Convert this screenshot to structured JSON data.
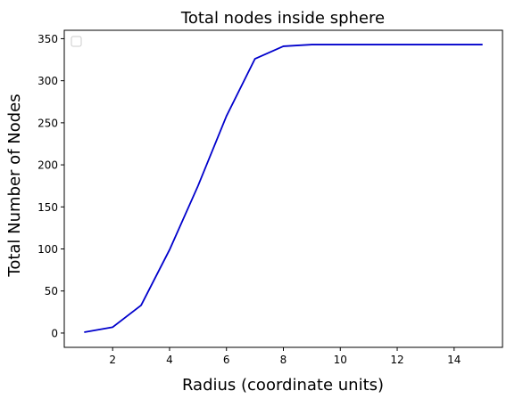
{
  "chart_data": {
    "type": "line",
    "title": "Total nodes inside sphere",
    "xlabel": "Radius (coordinate units)",
    "ylabel": "Total Number of Nodes",
    "xlim": [
      0.3,
      15.7
    ],
    "ylim": [
      -17,
      360
    ],
    "xticks": [
      2,
      4,
      6,
      8,
      10,
      12,
      14
    ],
    "yticks": [
      0,
      50,
      100,
      150,
      200,
      250,
      300,
      350
    ],
    "grid": false,
    "legend": {
      "placement": "top-left",
      "entries": []
    },
    "series": [
      {
        "color": "#0000cc",
        "x": [
          1,
          2,
          3,
          4,
          5,
          6,
          7,
          8,
          9,
          10,
          11,
          12,
          13,
          14,
          15
        ],
        "y": [
          1,
          7,
          33,
          99,
          175,
          258,
          326,
          341,
          343,
          343,
          343,
          343,
          343,
          343,
          343
        ]
      }
    ]
  }
}
